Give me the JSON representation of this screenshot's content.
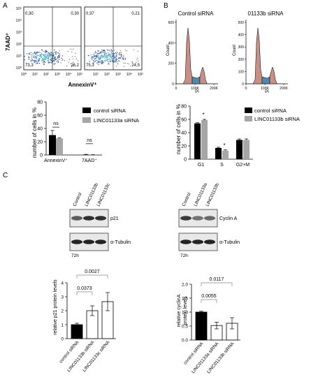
{
  "panels": {
    "A": {
      "letter": "A",
      "flow": {
        "ylabel": "7AAD⁺",
        "xlabel": "AnnexinV⁺",
        "yticks": [
          "10⁵",
          "10⁴",
          "10³",
          "10²",
          "10¹",
          "10⁰"
        ],
        "xticks": [
          "10⁰",
          "10¹",
          "10²",
          "10³",
          "10⁴",
          "10⁵"
        ],
        "plots": [
          {
            "ul": "0,30",
            "ur": "0,30",
            "ll": "73,3",
            "lr": "26,2"
          },
          {
            "ul": "0,37",
            "ur": "0,21",
            "ll": "75,3",
            "lr": "24,5"
          }
        ]
      },
      "bar": {
        "ylabel": "number of cells in %",
        "yticks": [
          "0",
          "20",
          "40",
          "60",
          "80"
        ],
        "categories": [
          "AnnexinV⁺",
          "7AAD⁺"
        ],
        "legend": [
          "control siRNA",
          "LINC01133a siRNA"
        ],
        "ns": [
          "ns",
          "ns"
        ]
      }
    },
    "B": {
      "letter": "B",
      "hist": {
        "titles": [
          "Control siRNA",
          "01133b siRNA"
        ],
        "ylabel": "Count",
        "yticks_left": [
          "600",
          "400",
          "200",
          "0"
        ],
        "yticks_right": [
          "500",
          "400",
          "300",
          "200",
          "100",
          "0"
        ],
        "xticks": [
          "0",
          "100K",
          "200K"
        ],
        "xlabel": "PI"
      },
      "bar": {
        "ylabel": "number of cells in %",
        "yticks": [
          "0",
          "20",
          "40",
          "60",
          "80"
        ],
        "categories": [
          "G1",
          "S",
          "G2+M"
        ],
        "legend": [
          "control siRNA",
          "LINC01133b siRNA"
        ],
        "stars": [
          "*",
          "*"
        ]
      }
    },
    "C": {
      "letter": "C",
      "blot_left": {
        "lanes": [
          "Control",
          "LINC01133b",
          "LINC01133c"
        ],
        "bands": [
          "p21",
          "α-Tubulin"
        ],
        "time": "72h"
      },
      "blot_right": {
        "lanes": [
          "Control",
          "LINC01133a",
          "LINC01133b"
        ],
        "bands": [
          "Cyclin A",
          "α-Tubulin"
        ],
        "time": "72h"
      },
      "bar_left": {
        "ylabel": "relative p21 protein levels",
        "yticks": [
          "0",
          "1",
          "2",
          "3",
          "4"
        ],
        "categories": [
          "control siRNA",
          "LINC01133b siRNA",
          "LINC01133c siRNA"
        ],
        "pvalues": [
          "0.0373",
          "0.0027"
        ]
      },
      "bar_right": {
        "ylabel": "relative cyclinA protein levels",
        "yticks": [
          "0.0",
          "0.5",
          "1.0",
          "1.5",
          "2.0"
        ],
        "categories": [
          "control siRNA",
          "LINC01133a siRNA",
          "LINC01133b siRNA"
        ],
        "pvalues": [
          "0.0055",
          "0.0117"
        ]
      }
    }
  },
  "colors": {
    "black": "#000000",
    "gray": "#a6a6a6",
    "hist_fill": "#c98f86",
    "hist_s": "#4b8ab0",
    "flow_blue": "#4a88c6",
    "flow_cyan": "#5fc7c0"
  },
  "chart_data": [
    {
      "type": "bar",
      "panel": "A",
      "categories": [
        "AnnexinV⁺",
        "7AAD⁺"
      ],
      "series": [
        {
          "name": "control siRNA",
          "values": [
            30,
            0.5
          ],
          "errors": [
            7,
            0.5
          ]
        },
        {
          "name": "LINC01133a siRNA",
          "values": [
            25,
            0.3
          ],
          "errors": [
            1,
            0.3
          ]
        }
      ],
      "ylabel": "number of cells in %",
      "ylim": [
        0,
        80
      ]
    },
    {
      "type": "bar",
      "panel": "B",
      "categories": [
        "G1",
        "S",
        "G2+M"
      ],
      "series": [
        {
          "name": "control siRNA",
          "values": [
            54,
            17,
            29
          ],
          "errors": [
            1,
            1,
            1.5
          ]
        },
        {
          "name": "LINC01133b siRNA",
          "values": [
            59,
            13,
            29
          ],
          "errors": [
            1,
            1,
            1.5
          ]
        }
      ],
      "ylabel": "number of cells in %",
      "ylim": [
        0,
        80
      ]
    },
    {
      "type": "bar",
      "panel": "C-left",
      "categories": [
        "control siRNA",
        "LINC01133b siRNA",
        "LINC01133c siRNA"
      ],
      "values": [
        1.0,
        2.0,
        2.65
      ],
      "errors": [
        0.1,
        0.35,
        0.65
      ],
      "ylabel": "relative p21 protein levels",
      "ylim": [
        0,
        4
      ]
    },
    {
      "type": "bar",
      "panel": "C-right",
      "categories": [
        "control siRNA",
        "LINC01133a siRNA",
        "LINC01133b siRNA"
      ],
      "values": [
        1.0,
        0.52,
        0.6
      ],
      "errors": [
        0.03,
        0.12,
        0.2
      ],
      "ylabel": "relative cyclinA protein levels",
      "ylim": [
        0,
        2
      ]
    }
  ]
}
